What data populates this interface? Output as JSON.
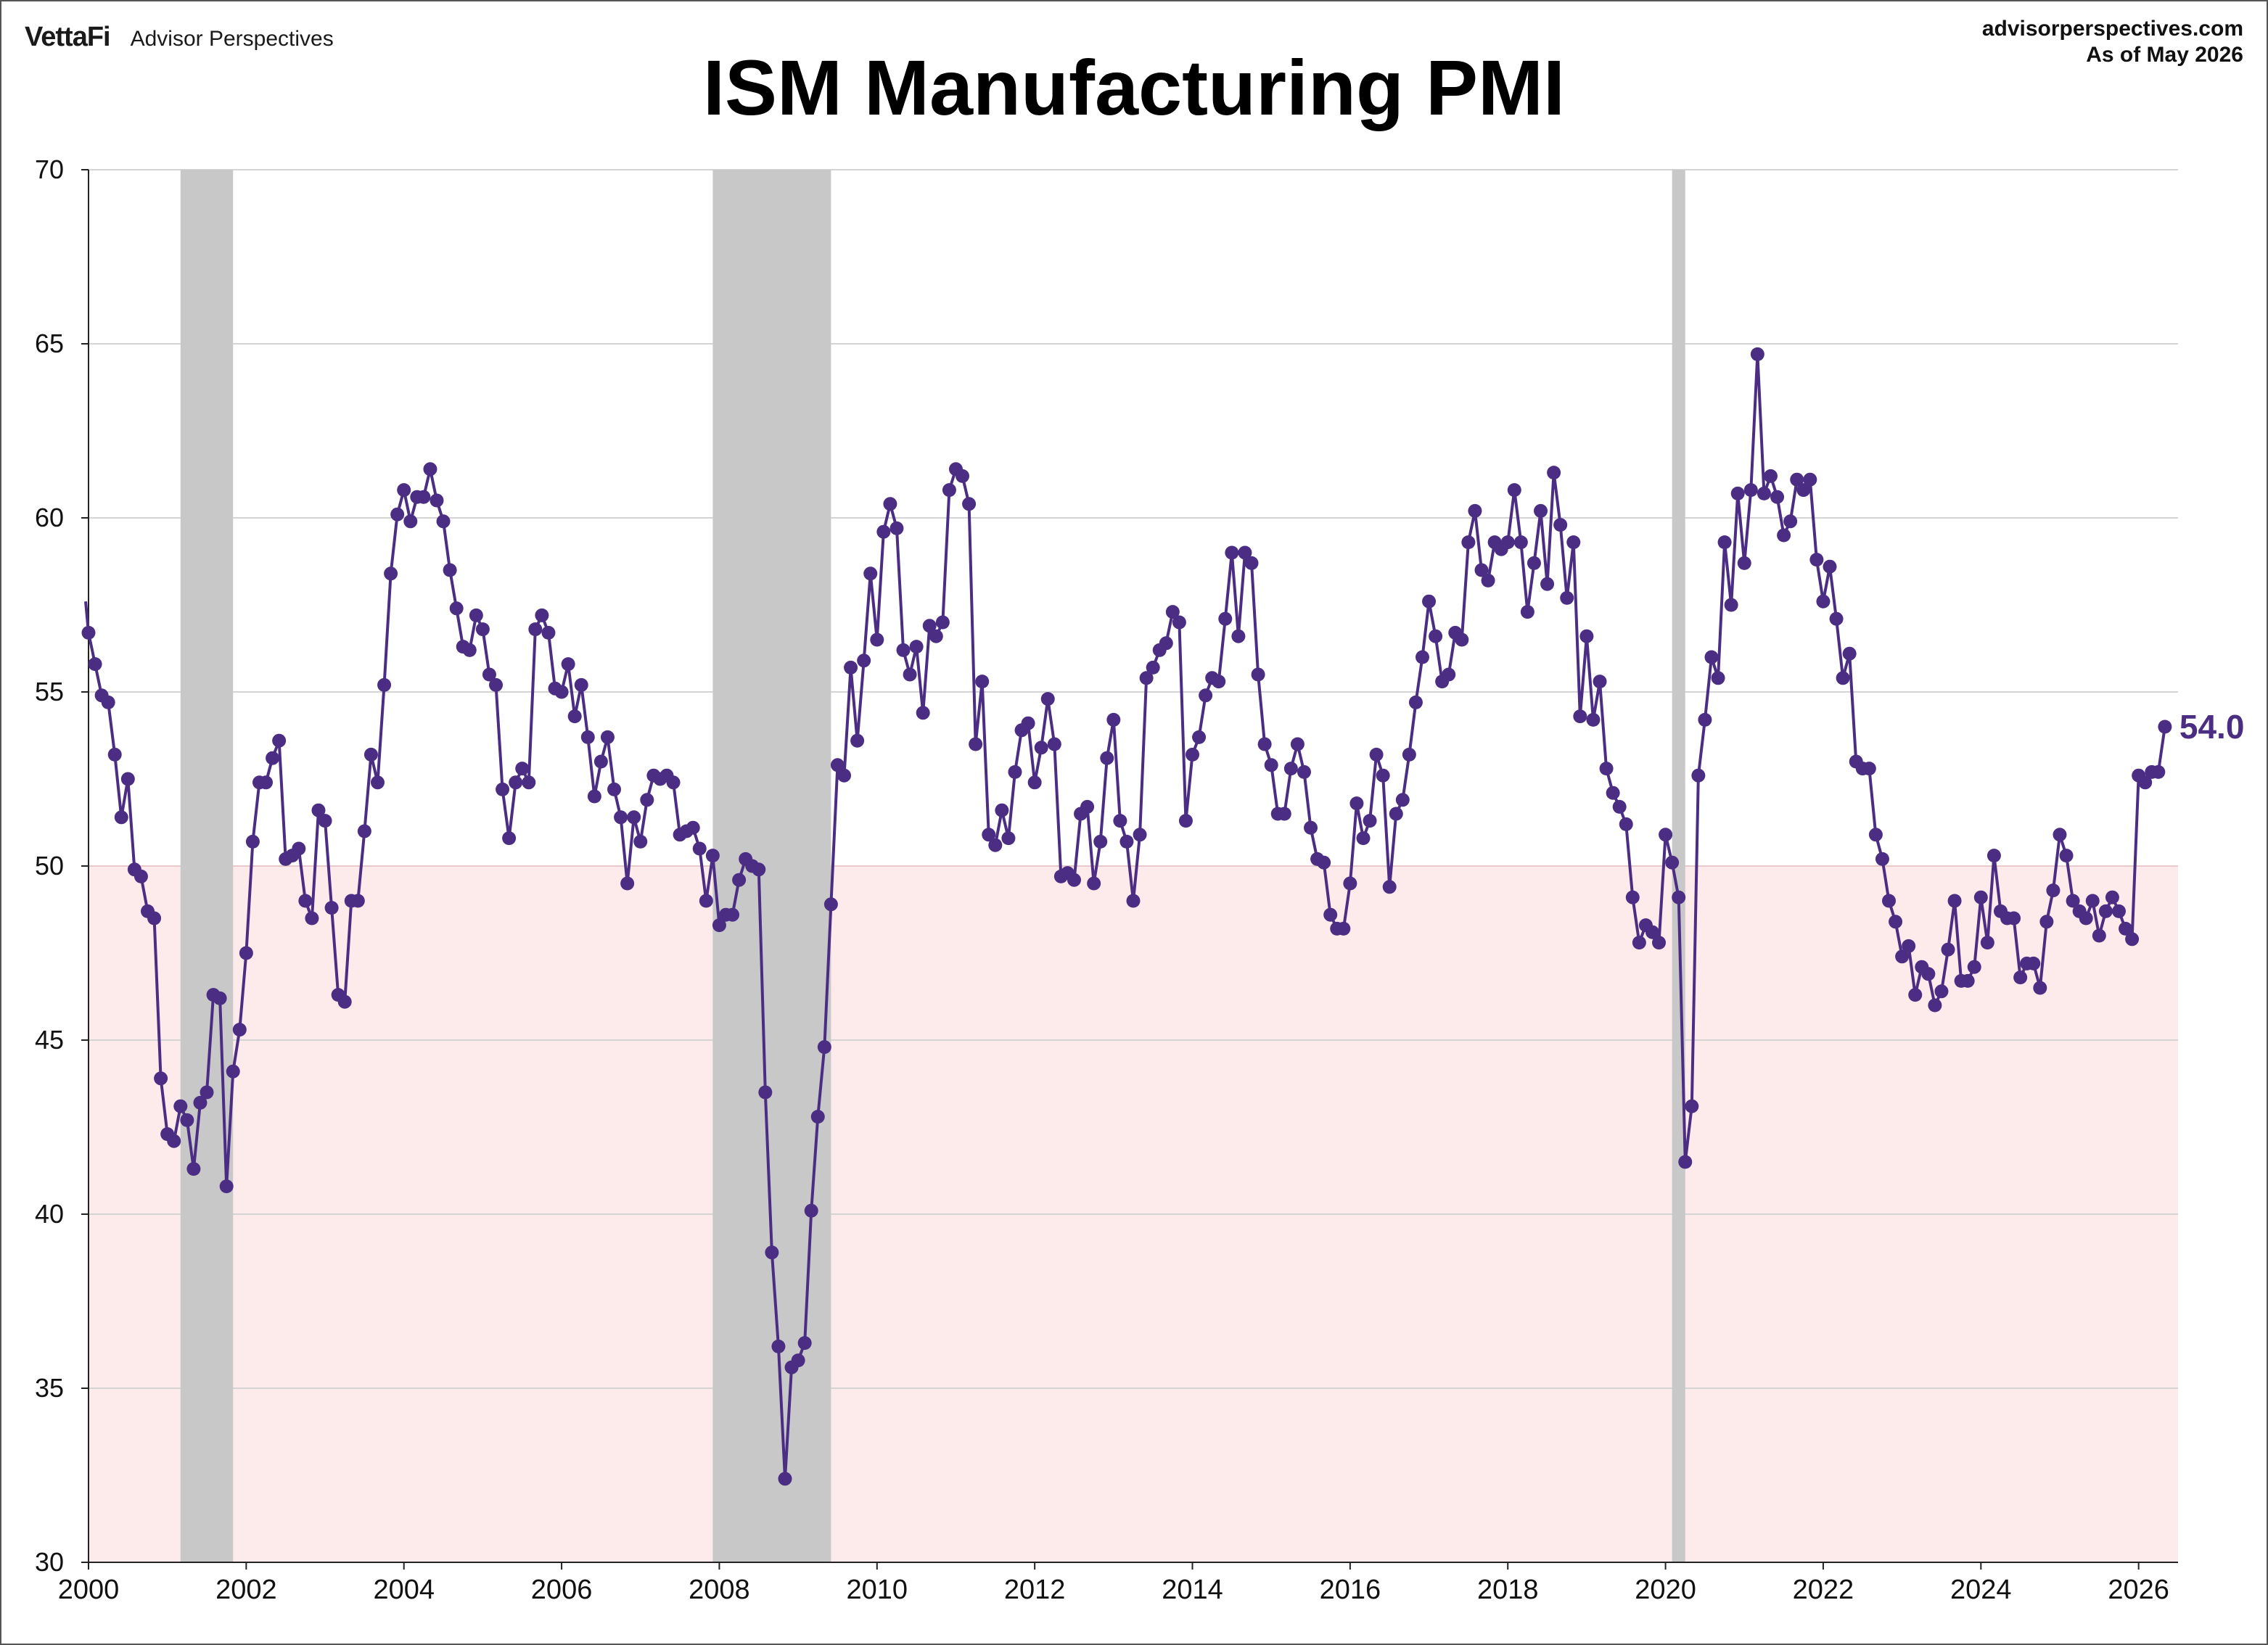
{
  "header": {
    "brand_logo": "VettaFi",
    "brand_name": "Advisor Perspectives",
    "site": "advisorperspectives.com",
    "as_of": "As of  May 2026"
  },
  "chart_data": {
    "type": "line",
    "title": "ISM Manufacturing PMI",
    "xlabel": "",
    "ylabel": "",
    "xlim": [
      2000,
      2026.5
    ],
    "ylim": [
      30,
      70
    ],
    "x_ticks": [
      "2000",
      "2002",
      "2004",
      "2006",
      "2008",
      "2010",
      "2012",
      "2014",
      "2016",
      "2018",
      "2020",
      "2022",
      "2024",
      "2026"
    ],
    "y_ticks": [
      "70",
      "65",
      "60",
      "55",
      "50",
      "45",
      "40",
      "35",
      "30"
    ],
    "grid": "horizontal",
    "contraction_threshold": 50,
    "recessions": [
      {
        "start": "2001-03",
        "end": "2001-11"
      },
      {
        "start": "2007-12",
        "end": "2009-06"
      },
      {
        "start": "2020-02",
        "end": "2020-04"
      }
    ],
    "series": [
      {
        "start": "2000-01",
        "frequency": "monthly",
        "color": "#4b2e83",
        "values": [
          56.7,
          55.8,
          54.9,
          54.7,
          53.2,
          51.4,
          52.5,
          49.9,
          49.7,
          48.7,
          48.5,
          43.9,
          42.3,
          42.1,
          43.1,
          42.7,
          41.3,
          43.2,
          43.5,
          46.3,
          46.2,
          40.8,
          44.1,
          45.3,
          47.5,
          50.7,
          52.4,
          52.4,
          53.1,
          53.6,
          50.2,
          50.3,
          50.5,
          49.0,
          48.5,
          51.6,
          51.3,
          48.8,
          46.3,
          46.1,
          49.0,
          49.0,
          51.0,
          53.2,
          52.4,
          55.2,
          58.4,
          60.1,
          60.8,
          59.9,
          60.6,
          60.6,
          61.4,
          60.5,
          59.9,
          58.5,
          57.4,
          56.3,
          56.2,
          57.2,
          56.8,
          55.5,
          55.2,
          52.2,
          50.8,
          52.4,
          52.8,
          52.4,
          56.8,
          57.2,
          56.7,
          55.1,
          55.0,
          55.8,
          54.3,
          55.2,
          53.7,
          52.0,
          53.0,
          53.7,
          52.2,
          51.4,
          49.5,
          51.4,
          50.7,
          51.9,
          52.6,
          52.5,
          52.6,
          52.4,
          50.9,
          51.0,
          51.1,
          50.5,
          49.0,
          50.3,
          48.3,
          48.6,
          48.6,
          49.6,
          50.2,
          50.0,
          49.9,
          43.5,
          38.9,
          36.2,
          32.4,
          35.6,
          35.8,
          36.3,
          40.1,
          42.8,
          44.8,
          48.9,
          52.9,
          52.6,
          55.7,
          53.6,
          55.9,
          58.4,
          56.5,
          59.6,
          60.4,
          59.7,
          56.2,
          55.5,
          56.3,
          54.4,
          56.9,
          56.6,
          57.0,
          60.8,
          61.4,
          61.2,
          60.4,
          53.5,
          55.3,
          50.9,
          50.6,
          51.6,
          50.8,
          52.7,
          53.9,
          54.1,
          52.4,
          53.4,
          54.8,
          53.5,
          49.7,
          49.8,
          49.6,
          51.5,
          51.7,
          49.5,
          50.7,
          53.1,
          54.2,
          51.3,
          50.7,
          49.0,
          50.9,
          55.4,
          55.7,
          56.2,
          56.4,
          57.3,
          57.0,
          51.3,
          53.2,
          53.7,
          54.9,
          55.4,
          55.3,
          57.1,
          59.0,
          56.6,
          59.0,
          58.7,
          55.5,
          53.5,
          52.9,
          51.5,
          51.5,
          52.8,
          53.5,
          52.7,
          51.1,
          50.2,
          50.1,
          48.6,
          48.2,
          48.2,
          49.5,
          51.8,
          50.8,
          51.3,
          53.2,
          52.6,
          49.4,
          51.5,
          51.9,
          53.2,
          54.7,
          56.0,
          57.6,
          56.6,
          55.3,
          55.5,
          56.7,
          56.5,
          59.3,
          60.2,
          58.5,
          58.2,
          59.3,
          59.1,
          59.3,
          60.8,
          59.3,
          57.3,
          58.7,
          60.2,
          58.1,
          61.3,
          59.8,
          57.7,
          59.3,
          54.3,
          56.6,
          54.2,
          55.3,
          52.8,
          52.1,
          51.7,
          51.2,
          49.1,
          47.8,
          48.3,
          48.1,
          47.8,
          50.9,
          50.1,
          49.1,
          41.5,
          43.1,
          52.6,
          54.2,
          56.0,
          55.4,
          59.3,
          57.5,
          60.7,
          58.7,
          60.8,
          64.7,
          60.7,
          61.2,
          60.6,
          59.5,
          59.9,
          61.1,
          60.8,
          61.1,
          58.8,
          57.6,
          58.6,
          57.1,
          55.4,
          56.1,
          53.0,
          52.8,
          52.8,
          50.9,
          50.2,
          49.0,
          48.4,
          47.4,
          47.7,
          46.3,
          47.1,
          46.9,
          46.0,
          46.4,
          47.6,
          49.0,
          46.7,
          46.7,
          47.1,
          49.1,
          47.8,
          50.3,
          48.7,
          48.5,
          48.5,
          46.8,
          47.2,
          47.2,
          46.5,
          48.4,
          49.3,
          50.9,
          50.3,
          49.0,
          48.7,
          48.5,
          49.0,
          48.0,
          48.7,
          49.1,
          48.7,
          48.2,
          47.9,
          52.6,
          52.4,
          52.7,
          52.7,
          54.0
        ]
      }
    ],
    "last_value_label": "54.0",
    "colors": {
      "line": "#4b2e83",
      "recession": "#c8c8c8",
      "contraction": "#fdeaea",
      "grid": "#d4d4d4"
    }
  }
}
